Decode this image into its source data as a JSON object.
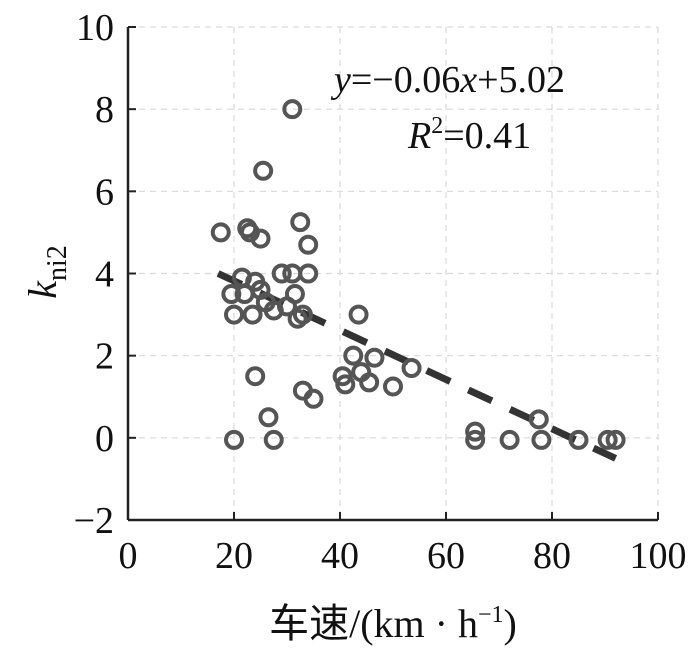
{
  "chart_data": {
    "type": "scatter",
    "xlabel": "车速/(km · h",
    "xlabel_sup": "−1",
    "xlabel_tail": ")",
    "ylabel": "k",
    "ylabel_sub": "ni2",
    "xlim": [
      0,
      100
    ],
    "ylim": [
      -2,
      10
    ],
    "xticks": [
      0,
      20,
      40,
      60,
      80,
      100
    ],
    "yticks": [
      -2,
      0,
      2,
      4,
      6,
      8,
      10
    ],
    "xtick_labels": [
      "0",
      "20",
      "40",
      "60",
      "80",
      "100"
    ],
    "ytick_labels": [
      "−2",
      "0",
      "2",
      "4",
      "6",
      "8",
      "10"
    ],
    "grid": true,
    "annotation": {
      "eq_y": "y",
      "eq_mid": "=−0.06",
      "eq_x": "x",
      "eq_tail": "+5.02",
      "r_label": "R",
      "r_sup": "2",
      "r_value": "=0.41"
    },
    "fit_line": {
      "slope": -0.06,
      "intercept": 5.02,
      "x_range": [
        17,
        92
      ]
    },
    "colors": {
      "marker": "#555555",
      "line": "#333333",
      "grid": "#d9d9d9",
      "axis": "#222222"
    },
    "points": [
      {
        "x": 17.5,
        "y": 5.0
      },
      {
        "x": 22.5,
        "y": 5.1
      },
      {
        "x": 23.0,
        "y": 5.0
      },
      {
        "x": 25.0,
        "y": 4.85
      },
      {
        "x": 25.5,
        "y": 6.5
      },
      {
        "x": 31.0,
        "y": 8.0
      },
      {
        "x": 32.5,
        "y": 5.25
      },
      {
        "x": 34.0,
        "y": 4.7
      },
      {
        "x": 19.5,
        "y": 3.5
      },
      {
        "x": 20.0,
        "y": 3.0
      },
      {
        "x": 21.5,
        "y": 3.9
      },
      {
        "x": 22.0,
        "y": 3.5
      },
      {
        "x": 23.5,
        "y": 3.0
      },
      {
        "x": 24.0,
        "y": 3.8
      },
      {
        "x": 25.0,
        "y": 3.6
      },
      {
        "x": 26.0,
        "y": 3.3
      },
      {
        "x": 27.5,
        "y": 3.1
      },
      {
        "x": 29.0,
        "y": 4.0
      },
      {
        "x": 30.0,
        "y": 3.2
      },
      {
        "x": 31.0,
        "y": 4.0
      },
      {
        "x": 31.5,
        "y": 3.5
      },
      {
        "x": 32.0,
        "y": 2.9
      },
      {
        "x": 33.0,
        "y": 3.0
      },
      {
        "x": 34.0,
        "y": 4.0
      },
      {
        "x": 24.0,
        "y": 1.5
      },
      {
        "x": 26.5,
        "y": 0.5
      },
      {
        "x": 20.0,
        "y": -0.05
      },
      {
        "x": 27.5,
        "y": -0.05
      },
      {
        "x": 33.0,
        "y": 1.15
      },
      {
        "x": 35.0,
        "y": 0.95
      },
      {
        "x": 43.5,
        "y": 3.0
      },
      {
        "x": 42.5,
        "y": 2.0
      },
      {
        "x": 44.0,
        "y": 1.6
      },
      {
        "x": 46.5,
        "y": 1.95
      },
      {
        "x": 40.5,
        "y": 1.5
      },
      {
        "x": 41.0,
        "y": 1.3
      },
      {
        "x": 45.5,
        "y": 1.35
      },
      {
        "x": 50.0,
        "y": 1.25
      },
      {
        "x": 53.5,
        "y": 1.7
      },
      {
        "x": 65.5,
        "y": 0.15
      },
      {
        "x": 65.5,
        "y": -0.05
      },
      {
        "x": 72.0,
        "y": -0.05
      },
      {
        "x": 77.5,
        "y": 0.45
      },
      {
        "x": 78.0,
        "y": -0.05
      },
      {
        "x": 85.0,
        "y": -0.05
      },
      {
        "x": 90.5,
        "y": -0.05
      },
      {
        "x": 92.0,
        "y": -0.05
      }
    ]
  }
}
